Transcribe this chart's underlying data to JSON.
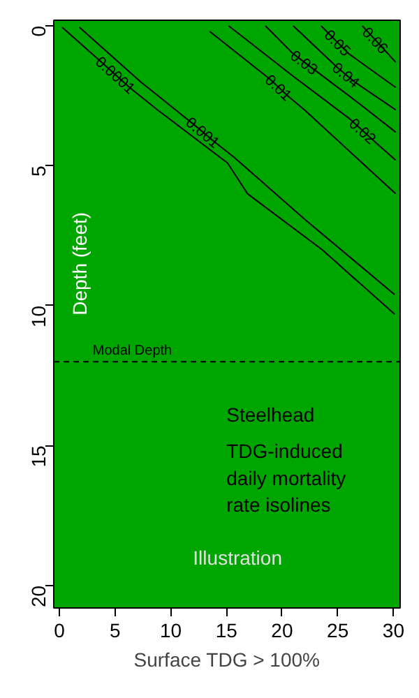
{
  "chart_data": {
    "type": "line",
    "xlabel": "Surface TDG > 100%",
    "ylabel": "Depth (feet)",
    "xlim": [
      -0.5,
      30.6
    ],
    "ylim": [
      20.8,
      -0.2
    ],
    "xticks": [
      0,
      5,
      10,
      15,
      20,
      25,
      30
    ],
    "yticks": [
      0,
      5,
      10,
      15,
      20
    ],
    "grid": false,
    "legend": false,
    "line_style": "solid",
    "marker": "none",
    "series": [
      {
        "name": "0.0001",
        "color": "#000000",
        "x": [
          0.25,
          3.8,
          6.3,
          8.8,
          15.1,
          16.9,
          23.6,
          30.1
        ],
        "values": [
          0.05,
          1.3,
          2.2,
          3.0,
          4.9,
          6.0,
          8.0,
          10.3
        ]
      },
      {
        "name": "0.001",
        "color": "#000000",
        "x": [
          1.8,
          7.3,
          12.0,
          13.8,
          15.7,
          22.0,
          30.1
        ],
        "values": [
          0.05,
          2.0,
          3.5,
          4.1,
          4.7,
          6.9,
          9.6
        ]
      },
      {
        "name": "0.01",
        "color": "#000000",
        "x": [
          13.5,
          18.9,
          20.5,
          22.0,
          30.2
        ],
        "values": [
          0.2,
          1.9,
          2.5,
          3.0,
          6.0
        ]
      },
      {
        "name": "0.02",
        "color": "#000000",
        "x": [
          15.2,
          21.0,
          26.0,
          28.5,
          30.2
        ],
        "values": [
          0.0,
          1.8,
          3.3,
          4.2,
          4.8
        ]
      },
      {
        "name": "0.03",
        "color": "#000000",
        "x": [
          18.5,
          21.0,
          23.0,
          27.0,
          30.2
        ],
        "values": [
          0.0,
          1.0,
          1.6,
          2.8,
          3.8
        ]
      },
      {
        "name": "0.04",
        "color": "#000000",
        "x": [
          21.0,
          25.0,
          26.5,
          30.2
        ],
        "values": [
          0.0,
          1.5,
          2.0,
          3.0
        ]
      },
      {
        "name": "0.05",
        "color": "#000000",
        "x": [
          23.5,
          26.0,
          30.2
        ],
        "values": [
          0.0,
          1.0,
          2.2
        ]
      },
      {
        "name": "0.06",
        "color": "#000000",
        "x": [
          27.2,
          28.6,
          30.2
        ],
        "values": [
          0.0,
          0.6,
          1.3
        ]
      }
    ],
    "ref_lines": [
      {
        "axis": "y",
        "value": 12,
        "label": "Modal Depth",
        "color": "#000000",
        "line_style": "dashed"
      }
    ],
    "annotations": [
      "Steelhead",
      "TDG-induced daily mortality rate isolines",
      "Illustration"
    ]
  }
}
